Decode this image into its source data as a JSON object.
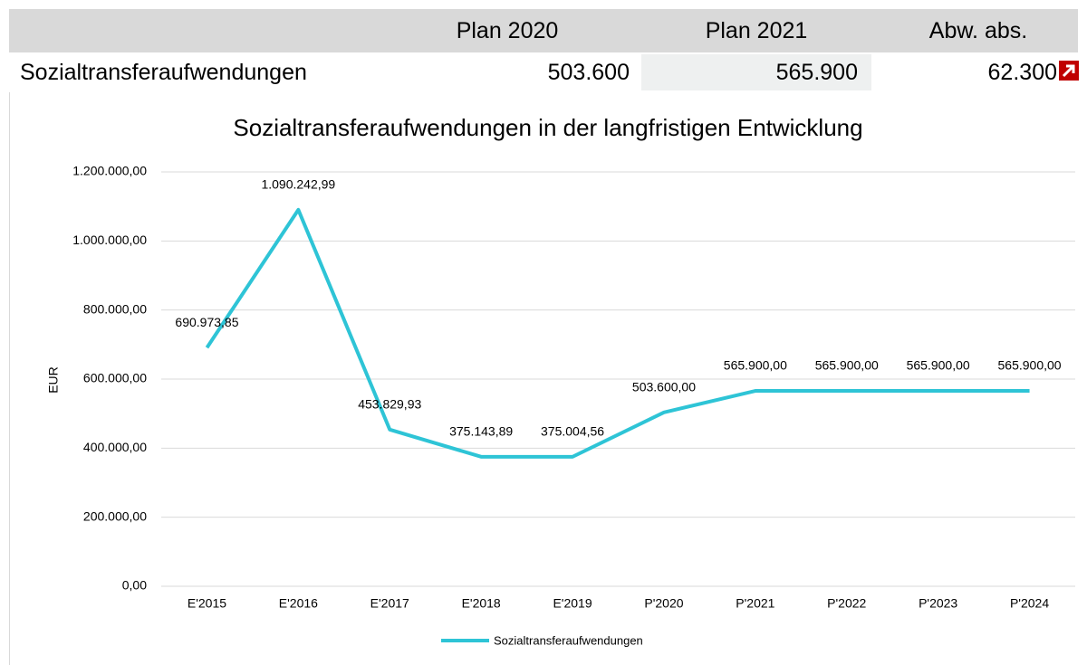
{
  "table": {
    "header": [
      "Plan 2020",
      "Plan 2021",
      "Abw. abs."
    ],
    "rows": [
      [
        "Sozialtransferaufwendungen",
        "503.600",
        "565.900",
        "62.300"
      ]
    ]
  },
  "chart_data": {
    "type": "line",
    "title": "Sozialtransferaufwendungen in der langfristigen Entwicklung",
    "y_label": "EUR",
    "categories": [
      "E'2015",
      "E'2016",
      "E'2017",
      "E'2018",
      "E'2019",
      "P'2020",
      "P'2021",
      "P'2022",
      "P'2023",
      "P'2024"
    ],
    "series": [
      {
        "name": "Sozialtransferaufwendungen",
        "color": "#2ec4d6",
        "values": [
          690973.85,
          1090242.99,
          453829.93,
          375143.89,
          375004.56,
          503600,
          565900,
          565900,
          565900,
          565900
        ],
        "value_labels": [
          "690.973,85",
          "1.090.242,99",
          "453.829,93",
          "375.143,89",
          "375.004,56",
          "503.600,00",
          "565.900,00",
          "565.900,00",
          "565.900,00",
          "565.900,00"
        ]
      }
    ],
    "ylim": [
      0,
      1200000
    ],
    "yticks": [
      {
        "value": 0,
        "label": "0,00"
      },
      {
        "value": 200000,
        "label": "200.000,00"
      },
      {
        "value": 400000,
        "label": "400.000,00"
      },
      {
        "value": 600000,
        "label": "600.000,00"
      },
      {
        "value": 800000,
        "label": "800.000,00"
      },
      {
        "value": 1000000,
        "label": "1.000.000,00"
      },
      {
        "value": 1200000,
        "label": "1.200.000,00"
      }
    ],
    "grid": true,
    "legend": "bottom"
  }
}
